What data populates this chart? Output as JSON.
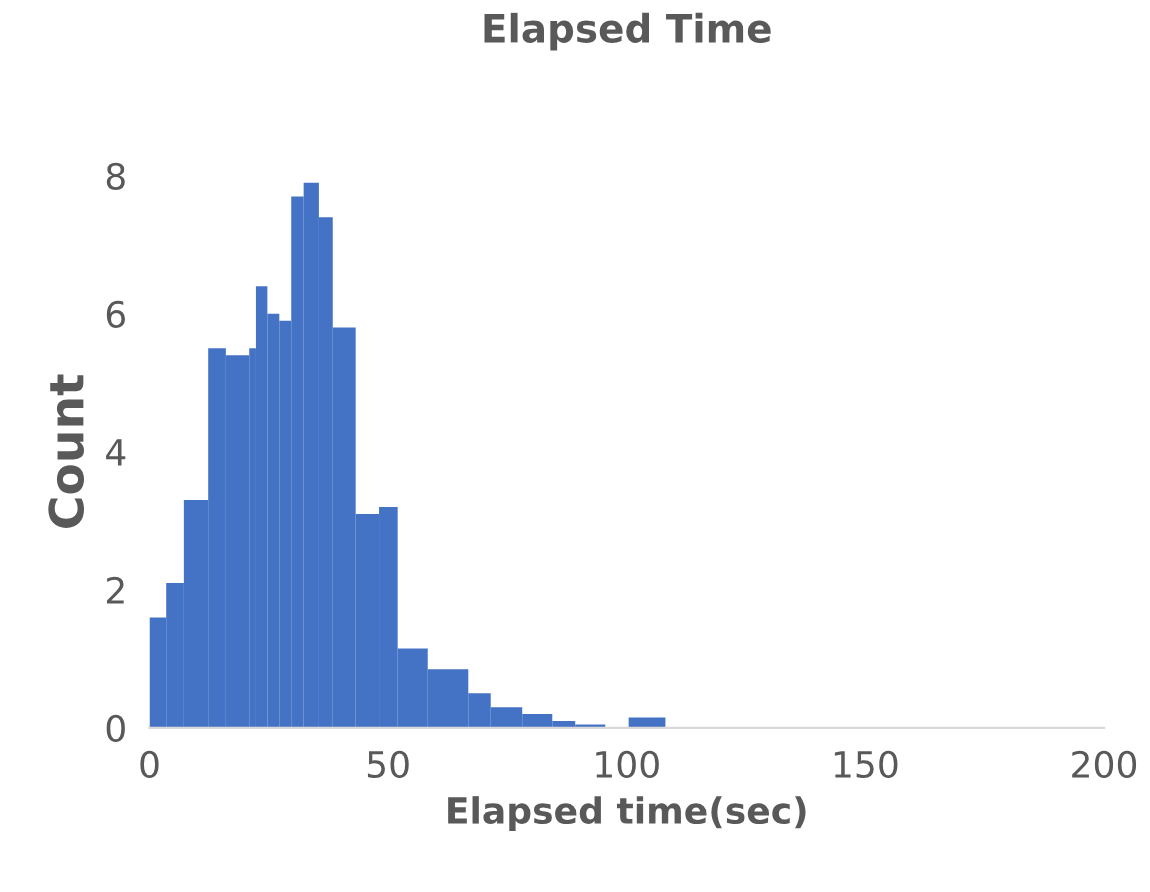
{
  "chart_data": {
    "type": "histogram",
    "title": "Elapsed Time",
    "xlabel": "Elapsed time(sec)",
    "ylabel": "Count",
    "bins": [
      0,
      3.5,
      7.2,
      12.3,
      16,
      20.9,
      22.3,
      24.7,
      27.2,
      29.7,
      32.3,
      35.5,
      38.4,
      43.2,
      48.1,
      52,
      58.3,
      66.8,
      71.5,
      78.1,
      84.4,
      89.2,
      95.5,
      100.4,
      108.1
    ],
    "values": [
      1.6,
      2.1,
      3.3,
      5.5,
      5.4,
      5.5,
      6.4,
      6.0,
      5.9,
      7.7,
      7.9,
      7.4,
      5.8,
      3.1,
      3.2,
      1.15,
      0.85,
      0.5,
      0.3,
      0.2,
      0.1,
      0.05,
      0,
      0.15
    ],
    "color": "#4472c4",
    "xlim": [
      0,
      200
    ],
    "xticks": [
      0,
      50,
      100,
      150,
      200
    ],
    "ylim": [
      0,
      8
    ],
    "yticks": [
      0,
      2,
      4,
      6,
      8
    ],
    "grid": false,
    "legend": false
  }
}
